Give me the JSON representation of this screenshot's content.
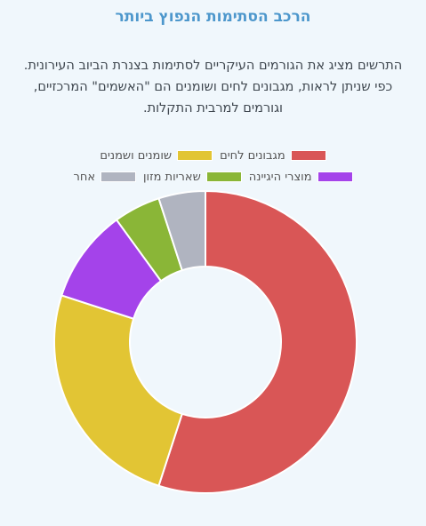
{
  "title": "הרכב הסתימות הנפוץ ביותר",
  "description": [
    "התרשים מציג את הגורמים העיקריים לסתימות בצנרת הביוב העירונית.",
    "כפי שניתן לראות, מגבונים לחים ושומנים הם \"האשמים\" המרכזיים,",
    "וגורמים למרבית התקלות."
  ],
  "chart_data": {
    "type": "pie",
    "title": "",
    "legend_position": "top",
    "categories": [
      "מגבונים לחים",
      "שומנים ושמנים",
      "מוצרי היגיינה",
      "שאריות מזון",
      "אחר"
    ],
    "values": [
      55,
      25,
      10,
      5,
      5
    ],
    "colors": [
      "#d95656",
      "#e2c534",
      "#a443ea",
      "#8ab637",
      "#b0b4c0"
    ],
    "legend_rows": [
      [
        0,
        1
      ],
      [
        2,
        3,
        4
      ]
    ]
  }
}
